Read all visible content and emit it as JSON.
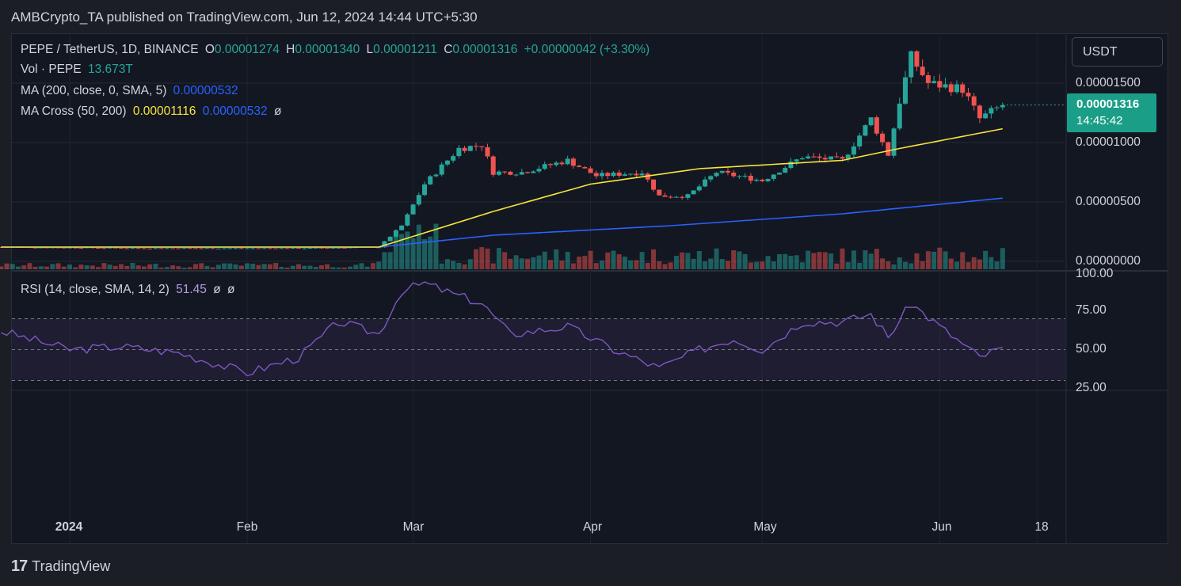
{
  "header": {
    "publisher_line": "AMBCrypto_TA published on TradingView.com, Jun 12, 2024 14:44 UTC+5:30"
  },
  "legend": {
    "symbol": "PEPE / TetherUS, 1D, BINANCE",
    "o_label": "O",
    "o_value": "0.00001274",
    "h_label": "H",
    "h_value": "0.00001340",
    "l_label": "L",
    "l_value": "0.00001211",
    "c_label": "C",
    "c_value": "0.00001316",
    "change": "+0.00000042 (+3.30%)",
    "vol_label": "Vol · PEPE",
    "vol_value": "13.673T",
    "ma_label": "MA (200, close, 0, SMA, 5)",
    "ma_value": "0.00000532",
    "cross_label": "MA Cross (50, 200)",
    "cross_fast": "0.00001116",
    "cross_slow": "0.00000532",
    "cross_icon": "ø",
    "rsi_label": "RSI (14, close, SMA, 14, 2)",
    "rsi_value": "51.45",
    "rsi_icon1": "ø",
    "rsi_icon2": "ø"
  },
  "currency": "USDT",
  "price_tag": {
    "price": "0.00001316",
    "countdown": "14:45:42"
  },
  "price_axis": [
    "0.00001500",
    "0.00001000",
    "0.00000500",
    "0.00000000"
  ],
  "rsi_axis": [
    "100.00",
    "75.00",
    "50.00",
    "25.00"
  ],
  "time_axis": [
    {
      "label": "2024",
      "bold": true
    },
    {
      "label": "Feb"
    },
    {
      "label": "Mar"
    },
    {
      "label": "Apr"
    },
    {
      "label": "May"
    },
    {
      "label": "Jun"
    },
    {
      "label": "18"
    }
  ],
  "footer": {
    "brand": "TradingView",
    "logo": "17"
  },
  "colors": {
    "up": "#26a69a",
    "down": "#ef5350",
    "ma200": "#2962ff",
    "ma50": "#f7e43a",
    "rsi": "#7e57c2"
  },
  "chart_data": [
    {
      "type": "candlestick",
      "title": "PEPE / TetherUS, 1D, BINANCE",
      "x_range": [
        "2023-12-20",
        "2024-06-12"
      ],
      "ylim": [
        0,
        1.75e-05
      ],
      "price_samples": [
        [
          "2023-12-20",
          1.2e-06
        ],
        [
          "2024-01-15",
          1.1e-06
        ],
        [
          "2024-02-10",
          1.1e-06
        ],
        [
          "2024-02-24",
          1.2e-06
        ],
        [
          "2024-02-28",
          3e-06
        ],
        [
          "2024-03-03",
          6.5e-06
        ],
        [
          "2024-03-09",
          9.5e-06
        ],
        [
          "2024-03-13",
          9.8e-06
        ],
        [
          "2024-03-15",
          7.5e-06
        ],
        [
          "2024-03-20",
          7.5e-06
        ],
        [
          "2024-03-28",
          8.5e-06
        ],
        [
          "2024-04-02",
          7.2e-06
        ],
        [
          "2024-04-10",
          7.5e-06
        ],
        [
          "2024-04-13",
          5.5e-06
        ],
        [
          "2024-04-18",
          5.5e-06
        ],
        [
          "2024-04-23",
          7.5e-06
        ],
        [
          "2024-05-01",
          6.8e-06
        ],
        [
          "2024-05-08",
          8.8e-06
        ],
        [
          "2024-05-15",
          8.5e-06
        ],
        [
          "2024-05-20",
          1.2e-05
        ],
        [
          "2024-05-23",
          9e-06
        ],
        [
          "2024-05-25",
          1.35e-05
        ],
        [
          "2024-05-27",
          1.72e-05
        ],
        [
          "2024-05-30",
          1.5e-05
        ],
        [
          "2024-06-05",
          1.45e-05
        ],
        [
          "2024-06-08",
          1.2e-05
        ],
        [
          "2024-06-12",
          1.316e-05
        ]
      ],
      "series": [
        {
          "name": "MA (200, close, 0, SMA, 5)",
          "samples": [
            [
              "2024-02-24",
              1.2e-06
            ],
            [
              "2024-03-15",
              2.2e-06
            ],
            [
              "2024-04-15",
              3e-06
            ],
            [
              "2024-05-15",
              4e-06
            ],
            [
              "2024-06-12",
              5.32e-06
            ]
          ]
        },
        {
          "name": "MA Cross (50, 200)",
          "samples": [
            [
              "2024-02-24",
              1.2e-06
            ],
            [
              "2024-03-15",
              4.2e-06
            ],
            [
              "2024-04-01",
              6.5e-06
            ],
            [
              "2024-04-20",
              7.8e-06
            ],
            [
              "2024-05-15",
              8.5e-06
            ],
            [
              "2024-05-25",
              9.5e-06
            ],
            [
              "2024-06-12",
              1.116e-05
            ]
          ]
        }
      ]
    },
    {
      "type": "line",
      "title": "RSI (14, close, SMA, 14, 2)",
      "ylim": [
        25,
        100
      ],
      "bands": [
        30,
        50,
        70
      ],
      "series": [
        {
          "name": "RSI",
          "samples": [
            [
              "2023-12-20",
              62
            ],
            [
              "2024-01-01",
              50
            ],
            [
              "2024-01-10",
              52
            ],
            [
              "2024-01-20",
              48
            ],
            [
              "2024-02-01",
              35
            ],
            [
              "2024-02-10",
              45
            ],
            [
              "2024-02-17",
              68
            ],
            [
              "2024-02-24",
              60
            ],
            [
              "2024-02-28",
              88
            ],
            [
              "2024-03-03",
              93
            ],
            [
              "2024-03-08",
              86
            ],
            [
              "2024-03-13",
              80
            ],
            [
              "2024-03-18",
              60
            ],
            [
              "2024-03-28",
              65
            ],
            [
              "2024-04-05",
              50
            ],
            [
              "2024-04-13",
              38
            ],
            [
              "2024-04-20",
              50
            ],
            [
              "2024-04-26",
              57
            ],
            [
              "2024-05-01",
              50
            ],
            [
              "2024-05-08",
              68
            ],
            [
              "2024-05-15",
              68
            ],
            [
              "2024-05-20",
              73
            ],
            [
              "2024-05-23",
              58
            ],
            [
              "2024-05-27",
              80
            ],
            [
              "2024-06-01",
              65
            ],
            [
              "2024-06-08",
              45
            ],
            [
              "2024-06-12",
              51.45
            ]
          ]
        }
      ]
    }
  ]
}
